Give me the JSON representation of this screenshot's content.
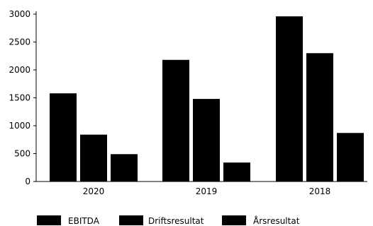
{
  "chart_data": {
    "type": "bar",
    "categories": [
      "2020",
      "2019",
      "2018"
    ],
    "series": [
      {
        "name": "EBITDA",
        "values": [
          1580,
          2180,
          2960
        ]
      },
      {
        "name": "Driftsresultat",
        "values": [
          840,
          1480,
          2300
        ]
      },
      {
        "name": "Årsresultat",
        "values": [
          490,
          340,
          870
        ]
      }
    ],
    "y_ticks": [
      "0",
      "500",
      "1000",
      "1500",
      "2000",
      "2500",
      "3000"
    ],
    "ylim": [
      0,
      3000
    ],
    "grid": false,
    "legend_position": "bottom",
    "bar_color": "#000000"
  }
}
